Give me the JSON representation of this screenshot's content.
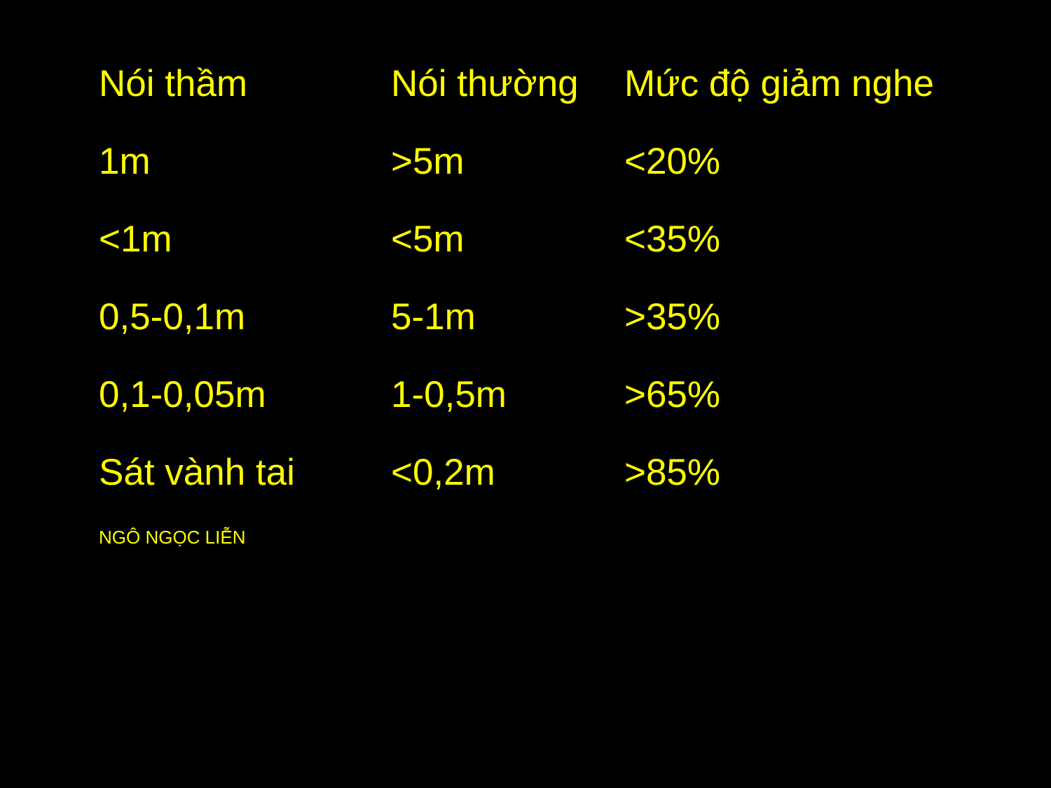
{
  "table": {
    "headers": [
      "Nói thầm",
      "Nói thường",
      "Mức độ giảm nghe"
    ],
    "rows": [
      [
        "1m",
        ">5m",
        "<20%"
      ],
      [
        "<1m",
        "<5m",
        "<35%"
      ],
      [
        "0,5-0,1m",
        "5-1m",
        ">35%"
      ],
      [
        "0,1-0,05m",
        "1-0,5m",
        ">65%"
      ],
      [
        "Sát vành tai",
        "<0,2m",
        ">85%"
      ]
    ]
  },
  "author": "NGÔ NGỌC LIỄN",
  "colors": {
    "background": "#000000",
    "text": "#ffff00"
  }
}
